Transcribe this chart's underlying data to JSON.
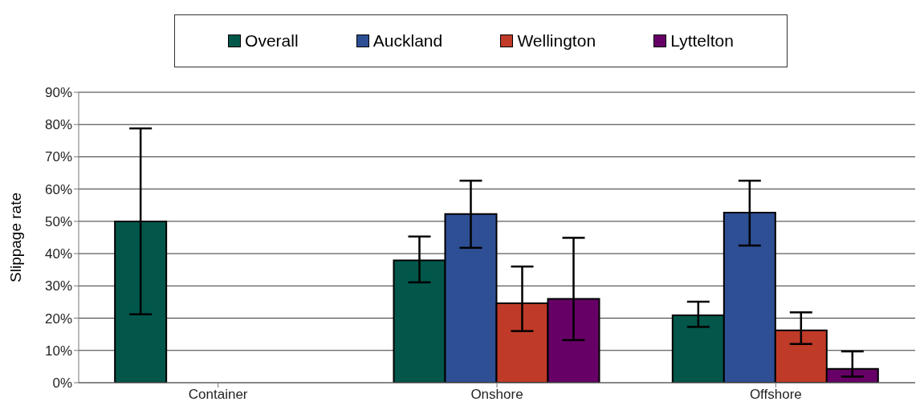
{
  "chart_data": {
    "type": "bar",
    "ylabel": "Slippage rate",
    "categories": [
      "Container",
      "Onshore",
      "Offshore"
    ],
    "series": [
      {
        "name": "Overall",
        "color": "#02564a",
        "values": [
          50,
          37.9,
          20.9
        ],
        "errors": [
          [
            21.2,
            78.8
          ],
          [
            31.1,
            45.3
          ],
          [
            17.3,
            25.1
          ]
        ]
      },
      {
        "name": "Auckland",
        "color": "#2e4f94",
        "values": [
          null,
          52.3,
          52.7
        ],
        "errors": [
          null,
          [
            41.8,
            62.6
          ],
          [
            42.5,
            62.6
          ]
        ]
      },
      {
        "name": "Wellington",
        "color": "#c03a28",
        "values": [
          null,
          24.6,
          16.2
        ],
        "errors": [
          null,
          [
            16.0,
            36.0
          ],
          [
            12.0,
            21.8
          ]
        ]
      },
      {
        "name": "Lyttelton",
        "color": "#660066",
        "values": [
          null,
          26.0,
          4.3
        ],
        "errors": [
          null,
          [
            13.2,
            44.9
          ],
          [
            1.9,
            9.7
          ]
        ]
      }
    ],
    "ylim": [
      0,
      90
    ],
    "yticks": [
      {
        "value": 0,
        "label": "0%"
      },
      {
        "value": 10,
        "label": "10%"
      },
      {
        "value": 20,
        "label": "20%"
      },
      {
        "value": 30,
        "label": "30%"
      },
      {
        "value": 40,
        "label": "40%"
      },
      {
        "value": 50,
        "label": "50%"
      },
      {
        "value": 60,
        "label": "60%"
      },
      {
        "value": 70,
        "label": "70%"
      },
      {
        "value": 80,
        "label": "80%"
      },
      {
        "value": 90,
        "label": "90%"
      }
    ],
    "grid": "y",
    "legend": "top"
  }
}
